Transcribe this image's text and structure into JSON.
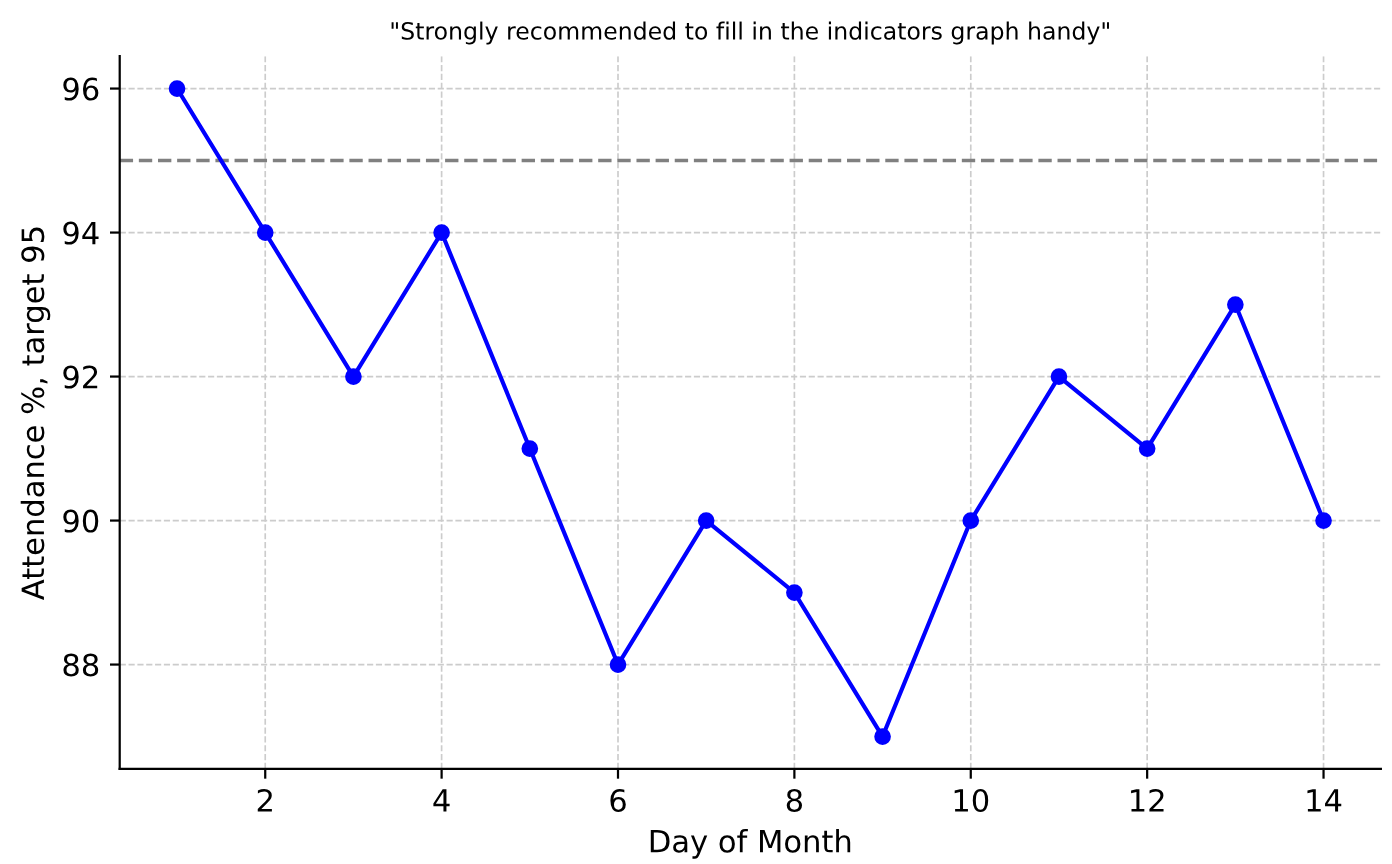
{
  "chart_data": {
    "type": "line",
    "title": "\"Strongly recommended to fill in the indicators graph handy\"",
    "xlabel": "Day of Month",
    "ylabel": "Attendance %, target 95",
    "x": [
      1,
      2,
      3,
      4,
      5,
      6,
      7,
      8,
      9,
      10,
      11,
      12,
      13,
      14
    ],
    "series": [
      {
        "color": "#0000ff",
        "values": [
          96,
          94,
          92,
          94,
          91,
          88,
          90,
          89,
          87,
          90,
          92,
          91,
          93,
          90
        ]
      }
    ],
    "xlim": [
      0.35,
      14.65
    ],
    "xticks": [
      2,
      4,
      6,
      8,
      10,
      12,
      14
    ],
    "ylim": [
      86.55,
      96.45
    ],
    "yticks": [
      88,
      90,
      92,
      94,
      96
    ],
    "ref_lines": [
      {
        "axis": "y",
        "value": 95,
        "color": "#808080",
        "line_style": "dashed"
      }
    ],
    "grid": true,
    "marker": "circle",
    "line_style": "solid"
  }
}
